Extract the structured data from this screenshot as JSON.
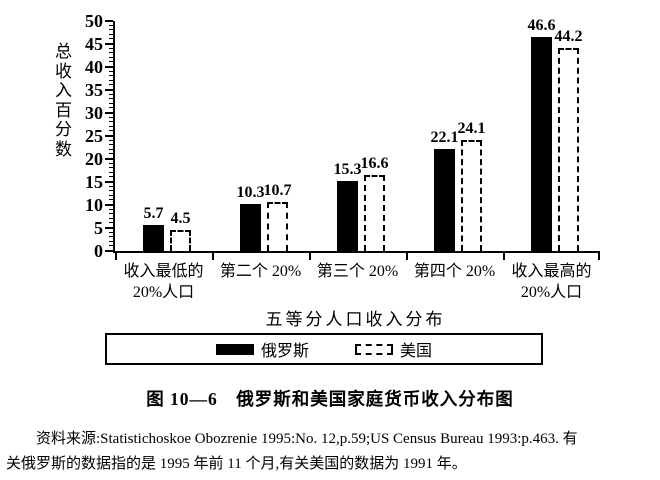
{
  "figure": {
    "caption": "图 10—6　俄罗斯和美国家庭货币收入分布图",
    "source_note": {
      "line1": "资料来源:Statistichoskoe Obozrenie 1995:No. 12,p.59;US Census Bureau 1993:p.463. 有",
      "line2": "关俄罗斯的数据指的是 1995 年前 11 个月,有关美国的数据为 1991 年。"
    }
  },
  "chart_data": {
    "type": "bar",
    "title": "",
    "ylabel": "总收入百分数",
    "xlabel": "五等分人口收入分布",
    "ylim": [
      0,
      50
    ],
    "ytick_major_step": 5,
    "ytick_minor_step": 1,
    "grid": false,
    "legend_position": "bottom boxed",
    "categories": [
      "收入最低的 20%人口",
      "第二个 20%",
      "第三个 20%",
      "第四个 20%",
      "收入最高的 20%人口"
    ],
    "category_label_lines": [
      [
        "收入最低的",
        "20%人口"
      ],
      [
        "第二个 20%"
      ],
      [
        "第三个 20%"
      ],
      [
        "第四个 20%"
      ],
      [
        "收入最高的",
        "20%人口"
      ]
    ],
    "series": [
      {
        "name": "俄罗斯",
        "style": "solid-black",
        "values": [
          5.7,
          10.3,
          15.3,
          22.1,
          46.6
        ]
      },
      {
        "name": "美国",
        "style": "white-dashed-outline",
        "values": [
          4.5,
          10.7,
          16.6,
          24.1,
          44.2
        ]
      }
    ],
    "colors": {
      "foreground": "#000000",
      "background": "#ffffff"
    }
  }
}
